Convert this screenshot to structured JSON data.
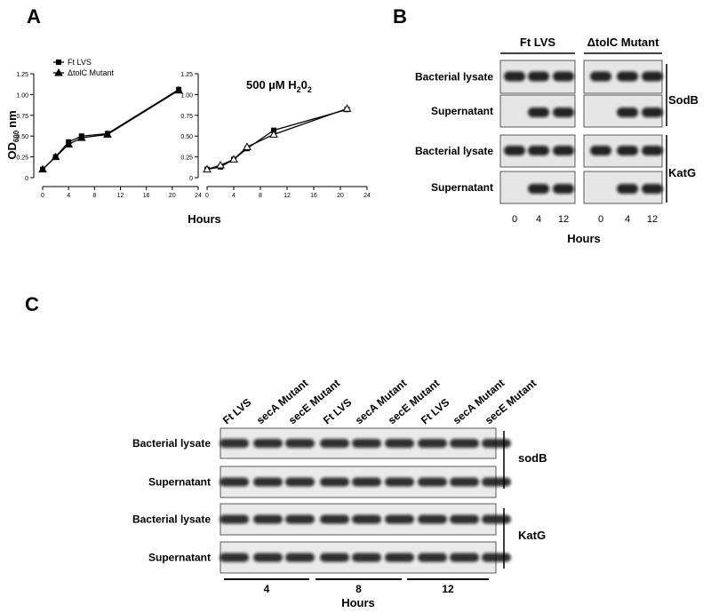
{
  "panel_labels": [
    "A",
    "B",
    "C"
  ],
  "chart_data": [
    {
      "type": "line",
      "y_label": [
        "OD",
        "600",
        "nm"
      ],
      "x_label": "Hours",
      "legend": "top-left",
      "xlim": [
        0,
        24
      ],
      "xticks": [
        0,
        4,
        8,
        12,
        16,
        20,
        24
      ],
      "ylim": [
        0,
        1.25
      ],
      "yticks": [
        0,
        {
          "value": 0.25,
          "label": "0.25"
        },
        {
          "value": 0.5,
          "label": "0.50"
        },
        {
          "value": 0.75,
          "label": "0.75"
        },
        {
          "value": 1,
          "label": "1.00"
        },
        {
          "value": 1.25,
          "label": "1.25"
        }
      ],
      "x": [
        0,
        2,
        4,
        6,
        10,
        21
      ],
      "series": [
        {
          "name": "Ft LVS",
          "color": "#000000",
          "marker": "square",
          "values": [
            0.1,
            0.25,
            0.43,
            0.5,
            0.53,
            1.06
          ]
        },
        {
          "name": "ΔtolC Mutant",
          "color": "#000000",
          "marker": "triangle",
          "values": [
            0.1,
            0.25,
            0.4,
            0.48,
            0.52,
            1.05
          ]
        }
      ]
    },
    {
      "type": "line",
      "title": [
        "500 µM H",
        "2",
        "0",
        "2"
      ],
      "xlim": [
        0,
        24
      ],
      "xticks": [
        0,
        4,
        8,
        12,
        16,
        20,
        24
      ],
      "ylim": [
        0,
        1.25
      ],
      "yticks": [
        0,
        {
          "value": 0.25,
          "label": "0.25"
        },
        {
          "value": 0.5,
          "label": "0.50"
        },
        {
          "value": 0.75,
          "label": "0.75"
        },
        {
          "value": 1,
          "label": "1.00"
        },
        {
          "value": 1.25,
          "label": "1.25"
        }
      ],
      "x": [
        0,
        2,
        4,
        6,
        10,
        21
      ],
      "series": [
        {
          "color": "#000000",
          "marker": "square",
          "values": [
            0.1,
            0.13,
            0.22,
            0.35,
            0.57,
            0.82
          ]
        },
        {
          "color": "#000000",
          "marker": "open-triangle",
          "values": [
            0.1,
            0.15,
            0.22,
            0.37,
            0.52,
            0.83
          ]
        }
      ]
    }
  ],
  "blot_b": {
    "groups": [
      "Ft LVS",
      "ΔtolC Mutant"
    ],
    "rows": [
      "Bacterial lysate",
      "Supernatant",
      "Bacterial lysate",
      "Supernatant"
    ],
    "proteins": [
      "SodB",
      "KatG"
    ],
    "lanes": [
      [
        "0",
        "4",
        "12"
      ],
      [
        "0",
        "4",
        "12"
      ]
    ],
    "x_label": "Hours"
  },
  "blot_c": {
    "lanes": [
      "Ft LVS",
      "secA Mutant",
      "secE Mutant",
      "Ft LVS",
      "secA Mutant",
      "secE Mutant",
      "Ft LVS",
      "secA Mutant",
      "secE Mutant"
    ],
    "rows": [
      "Bacterial lysate",
      "Supernatant",
      "Bacterial lysate",
      "Supernatant"
    ],
    "proteins": [
      "sodB",
      "KatG"
    ],
    "times": [
      "4",
      "8",
      "12"
    ],
    "x_label": "Hours"
  }
}
